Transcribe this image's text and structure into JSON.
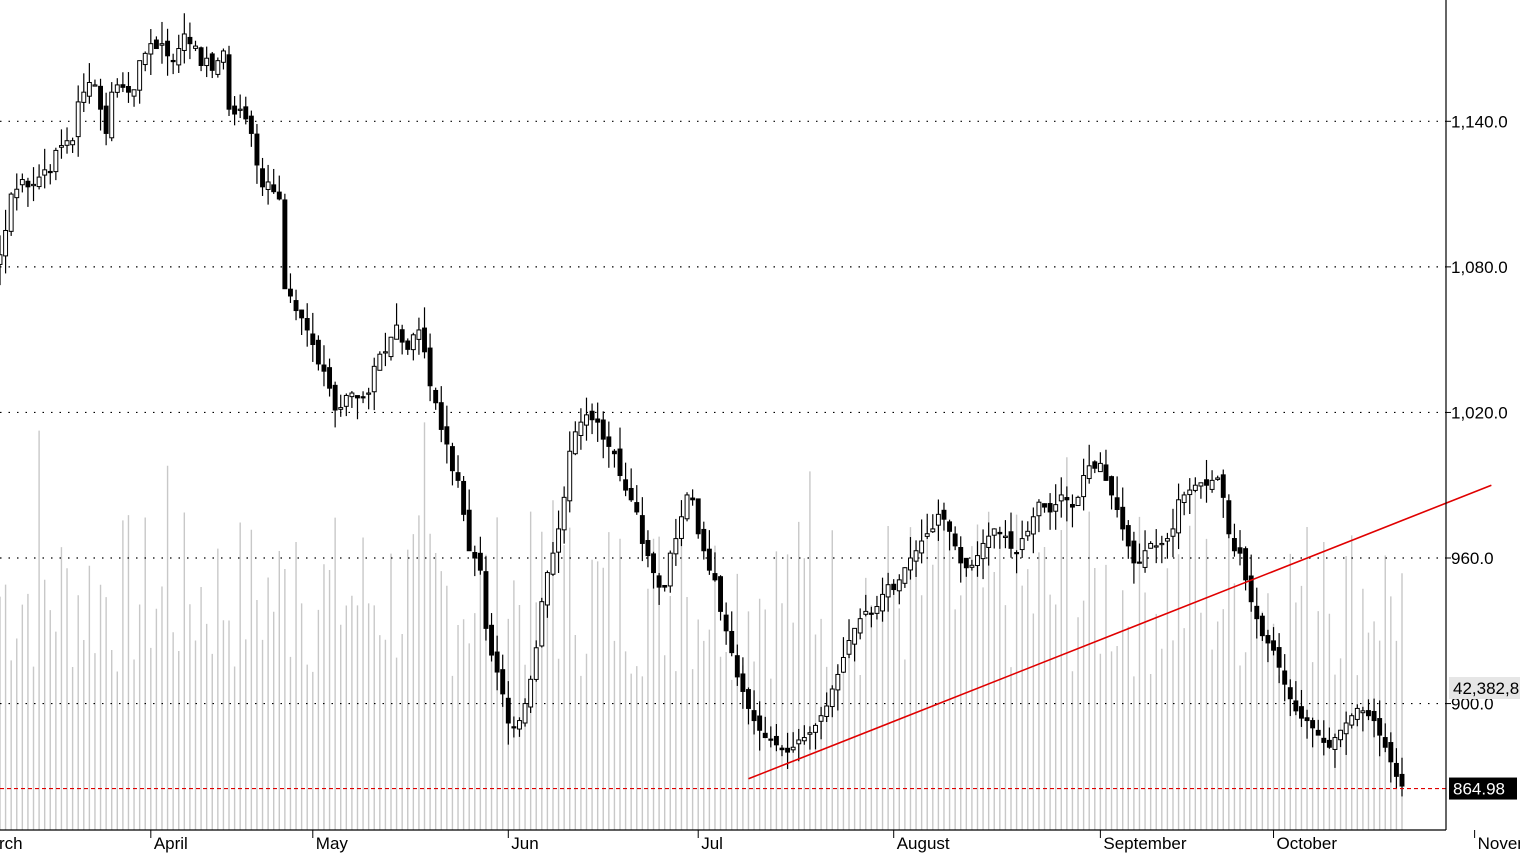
{
  "chart_data": {
    "type": "candlestick",
    "title": "",
    "xlabel": "",
    "ylabel": "",
    "ylim": [
      838,
      1190
    ],
    "y_ticks": [
      {
        "value": 1140,
        "label": "1,140.0"
      },
      {
        "value": 1080,
        "label": "1,080.0"
      },
      {
        "value": 1020,
        "label": "1,020.0"
      },
      {
        "value": 960,
        "label": "960.0"
      },
      {
        "value": 900,
        "label": "900.0"
      }
    ],
    "months": [
      "rch",
      "April",
      "May",
      "Jun",
      "Jul",
      "August",
      "September",
      "October",
      "November"
    ],
    "grid": "horizontal-dotted",
    "current_price": {
      "value": 864.98,
      "label": "864.98"
    },
    "volume_readout": "42,382,8",
    "trendline": {
      "start": {
        "month": "Jul",
        "value": 869
      },
      "end": {
        "month": "October",
        "value": 990
      }
    },
    "colors": {
      "up_body": "#ffffff",
      "down_body": "#000000",
      "volume": "#c8c8c8",
      "trendline": "#e00000",
      "price_line": "#e00000",
      "grid": "#000000"
    },
    "closes": [
      1085,
      1095,
      1110,
      1112,
      1116,
      1113,
      1114,
      1117,
      1120,
      1119,
      1128,
      1130,
      1132,
      1132,
      1148,
      1152,
      1156,
      1155,
      1145,
      1135,
      1152,
      1155,
      1154,
      1152,
      1153,
      1165,
      1168,
      1172,
      1170,
      1172,
      1167,
      1165,
      1170,
      1176,
      1172,
      1171,
      1163,
      1166,
      1161,
      1165,
      1169,
      1145,
      1143,
      1145,
      1141,
      1135,
      1122,
      1113,
      1115,
      1111,
      1108,
      1071,
      1068,
      1062,
      1059,
      1054,
      1048,
      1040,
      1037,
      1030,
      1021,
      1022,
      1027,
      1028,
      1026,
      1026,
      1028,
      1039,
      1044,
      1045,
      1051,
      1056,
      1049,
      1046,
      1052,
      1054,
      1045,
      1031,
      1024,
      1013,
      1007,
      996,
      992,
      978,
      963,
      960,
      955,
      931,
      920,
      913,
      904,
      892,
      890,
      893,
      900,
      910,
      923,
      942,
      954,
      962,
      972,
      985,
      1004,
      1012,
      1016,
      1019,
      1017,
      1016,
      1009,
      1006,
      1003,
      994,
      988,
      984,
      979,
      966,
      961,
      954,
      948,
      948,
      962,
      968,
      977,
      986,
      984,
      970,
      963,
      955,
      951,
      938,
      930,
      921,
      911,
      905,
      898,
      893,
      889,
      886,
      885,
      883,
      881,
      880,
      882,
      885,
      886,
      888,
      891,
      895,
      899,
      906,
      912,
      919,
      926,
      931,
      935,
      938,
      937,
      940,
      945,
      949,
      947,
      951,
      956,
      960,
      963,
      967,
      970,
      972,
      978,
      976,
      971,
      965,
      958,
      956,
      957,
      961,
      966,
      969,
      972,
      970,
      969,
      964,
      962,
      968,
      971,
      977,
      983,
      981,
      979,
      982,
      986,
      984,
      981,
      985,
      994,
      998,
      997,
      999,
      992,
      986,
      980,
      972,
      965,
      958,
      958,
      963,
      966,
      965,
      966,
      968,
      972,
      984,
      986,
      988,
      990,
      991,
      990,
      992,
      993,
      985,
      970,
      963,
      962,
      951,
      942,
      935,
      928,
      925,
      922,
      915,
      908,
      902,
      897,
      894,
      893,
      890,
      887,
      884,
      882,
      886,
      889,
      892,
      895,
      898,
      897,
      895,
      893,
      887,
      882,
      876,
      870,
      866
    ]
  }
}
